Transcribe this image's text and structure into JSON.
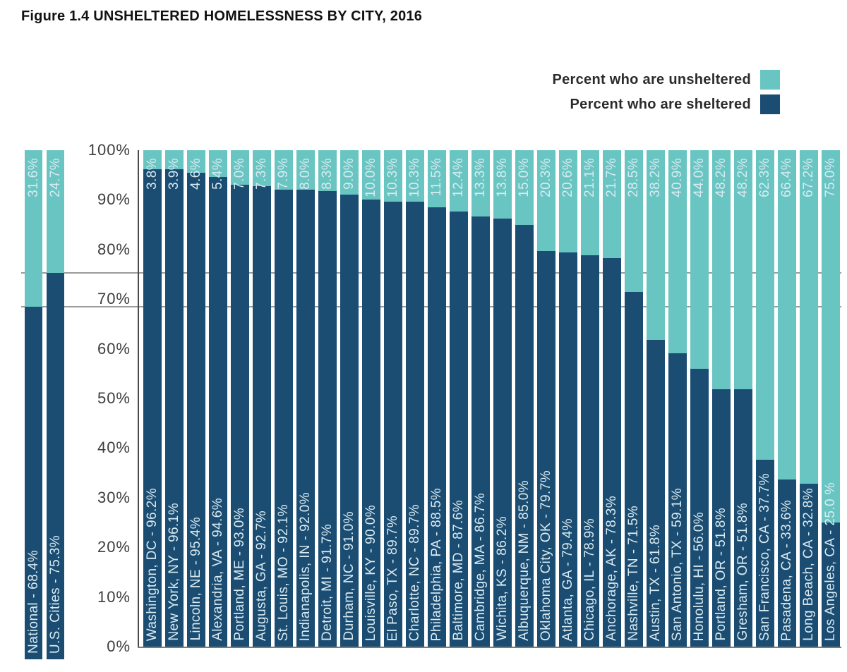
{
  "title": "Figure 1.4 UNSHELTERED HOMELESSNESS BY CITY, 2016",
  "legend": {
    "items": [
      {
        "label": "Percent who are unsheltered",
        "color": "#69C5C2"
      },
      {
        "label": "Percent who are sheltered",
        "color": "#1B4C72"
      }
    ]
  },
  "colors": {
    "unsheltered": "#69C5C2",
    "sheltered": "#1B4C72",
    "reference_line": "#9B9B9B",
    "axis_text": "#3D3D3D",
    "bar_label_text": "#D9EBF1"
  },
  "chart_data": {
    "type": "bar",
    "stacked": true,
    "title": "Figure 1.4 UNSHELTERED HOMELESSNESS BY CITY, 2016",
    "xlabel": "",
    "ylabel": "",
    "ylim": [
      0,
      100
    ],
    "y_ticks": [
      "100%",
      "90%",
      "80%",
      "70%",
      "60%",
      "50%",
      "40%",
      "30%",
      "20%",
      "10%",
      "0%"
    ],
    "legend_position": "top-right",
    "grid": false,
    "reference_lines": [
      {
        "value": 68.4,
        "source": "National"
      },
      {
        "value": 75.3,
        "source": "U.S. Cities"
      }
    ],
    "summary_bars": [
      {
        "category": "National",
        "label": "National - 68.4%",
        "top_label": "31.6%",
        "sheltered": 68.4,
        "unsheltered": 31.6
      },
      {
        "category": "U.S. Cities",
        "label": "U.S. Cities - 75.3%",
        "top_label": "24.7%",
        "sheltered": 75.3,
        "unsheltered": 24.7
      }
    ],
    "series": [
      {
        "name": "Percent who are sheltered",
        "color": "#1B4C72"
      },
      {
        "name": "Percent who are unsheltered",
        "color": "#69C5C2"
      }
    ],
    "bars": [
      {
        "city": "Washington, DC",
        "label": "Washington, DC - 96.2%",
        "top_label": "3.8%",
        "sheltered": 96.2,
        "unsheltered": 3.8
      },
      {
        "city": "New York, NY",
        "label": "New York, NY - 96.1%",
        "top_label": "3.9%",
        "sheltered": 96.1,
        "unsheltered": 3.9
      },
      {
        "city": "Lincoln, NE",
        "label": "Lincoln, NE - 95.4%",
        "top_label": "4.6%",
        "sheltered": 95.4,
        "unsheltered": 4.6
      },
      {
        "city": "Alexandria, VA",
        "label": "Alexandria, VA - 94.6%",
        "top_label": "5.4%",
        "sheltered": 94.6,
        "unsheltered": 5.4
      },
      {
        "city": "Portland, ME",
        "label": "Portland, ME - 93.0%",
        "top_label": "7.0%",
        "sheltered": 93.0,
        "unsheltered": 7.0
      },
      {
        "city": "Augusta, GA",
        "label": "Augusta, GA - 92.7%",
        "top_label": "7.3%",
        "sheltered": 92.7,
        "unsheltered": 7.3
      },
      {
        "city": "St. Louis, MO",
        "label": "St. Louis, MO - 92.1%",
        "top_label": "7.9%",
        "sheltered": 92.1,
        "unsheltered": 7.9
      },
      {
        "city": "Indianapolis, IN",
        "label": "Indianapolis, IN - 92.0%",
        "top_label": "8.0%",
        "sheltered": 92.0,
        "unsheltered": 8.0
      },
      {
        "city": "Detroit, MI",
        "label": "Detroit, MI - 91.7%",
        "top_label": "8.3%",
        "sheltered": 91.7,
        "unsheltered": 8.3
      },
      {
        "city": "Durham, NC",
        "label": "Durham, NC - 91.0%",
        "top_label": "9.0%",
        "sheltered": 91.0,
        "unsheltered": 9.0
      },
      {
        "city": "Louisville, KY",
        "label": "Louisville, KY - 90.0%",
        "top_label": "10.0%",
        "sheltered": 90.0,
        "unsheltered": 10.0
      },
      {
        "city": "El Paso, TX",
        "label": "El Paso, TX - 89.7%",
        "top_label": "10.3%",
        "sheltered": 89.7,
        "unsheltered": 10.3
      },
      {
        "city": "Charlotte, NC",
        "label": "Charlotte, NC - 89.7%",
        "top_label": "10.3%",
        "sheltered": 89.7,
        "unsheltered": 10.3
      },
      {
        "city": "Philadelphia, PA",
        "label": "Philadelphia, PA - 88.5%",
        "top_label": "11.5%",
        "sheltered": 88.5,
        "unsheltered": 11.5
      },
      {
        "city": "Baltimore, MD",
        "label": "Baltimore, MD - 87.6%",
        "top_label": "12.4%",
        "sheltered": 87.6,
        "unsheltered": 12.4
      },
      {
        "city": "Cambridge, MA",
        "label": "Cambridge, MA - 86.7%",
        "top_label": "13.3%",
        "sheltered": 86.7,
        "unsheltered": 13.3
      },
      {
        "city": "Wichita, KS",
        "label": "Wichita, KS - 86.2%",
        "top_label": "13.8%",
        "sheltered": 86.2,
        "unsheltered": 13.8
      },
      {
        "city": "Albuquerque, NM",
        "label": "Albuquerque, NM - 85.0%",
        "top_label": "15.0%",
        "sheltered": 85.0,
        "unsheltered": 15.0
      },
      {
        "city": "Oklahoma City, OK",
        "label": "Oklahoma City, OK - 79.7%",
        "top_label": "20.3%",
        "sheltered": 79.7,
        "unsheltered": 20.3
      },
      {
        "city": "Atlanta, GA",
        "label": "Atlanta, GA - 79.4%",
        "top_label": "20.6%",
        "sheltered": 79.4,
        "unsheltered": 20.6
      },
      {
        "city": "Chicago, IL",
        "label": "Chicago, IL - 78.9%",
        "top_label": "21.1%",
        "sheltered": 78.9,
        "unsheltered": 21.1
      },
      {
        "city": "Anchorage, AK",
        "label": "Anchorage, AK - 78.3%",
        "top_label": "21.7%",
        "sheltered": 78.3,
        "unsheltered": 21.7
      },
      {
        "city": "Nashville, TN",
        "label": "Nashville, TN - 71.5%",
        "top_label": "28.5%",
        "sheltered": 71.5,
        "unsheltered": 28.5
      },
      {
        "city": "Austin, TX",
        "label": "Austin, TX - 61.8%",
        "top_label": "38.2%",
        "sheltered": 61.8,
        "unsheltered": 38.2
      },
      {
        "city": "San Antonio, TX",
        "label": "San Antonio, TX - 59.1%",
        "top_label": "40.9%",
        "sheltered": 59.1,
        "unsheltered": 40.9
      },
      {
        "city": "Honolulu, HI",
        "label": "Honolulu, HI - 56.0%",
        "top_label": "44.0%",
        "sheltered": 56.0,
        "unsheltered": 44.0
      },
      {
        "city": "Portland, OR",
        "label": "Portland, OR - 51.8%",
        "top_label": "48.2%",
        "sheltered": 51.8,
        "unsheltered": 48.2
      },
      {
        "city": "Gresham, OR",
        "label": "Gresham, OR - 51.8%",
        "top_label": "48.2%",
        "sheltered": 51.8,
        "unsheltered": 48.2
      },
      {
        "city": "San Francisco, CA",
        "label": "San Francisco, CA - 37.7%",
        "top_label": "62.3%",
        "sheltered": 37.7,
        "unsheltered": 62.3
      },
      {
        "city": "Pasadena, CA",
        "label": "Pasadena, CA - 33.6%",
        "top_label": "66.4%",
        "sheltered": 33.6,
        "unsheltered": 66.4
      },
      {
        "city": "Long Beach, CA",
        "label": "Long Beach, CA - 32.8%",
        "top_label": "67.2%",
        "sheltered": 32.8,
        "unsheltered": 67.2
      },
      {
        "city": "Los Angeles, CA",
        "label": "Los Angeles, CA - 25.0 %",
        "top_label": "75.0%",
        "sheltered": 25.0,
        "unsheltered": 75.0
      }
    ]
  }
}
